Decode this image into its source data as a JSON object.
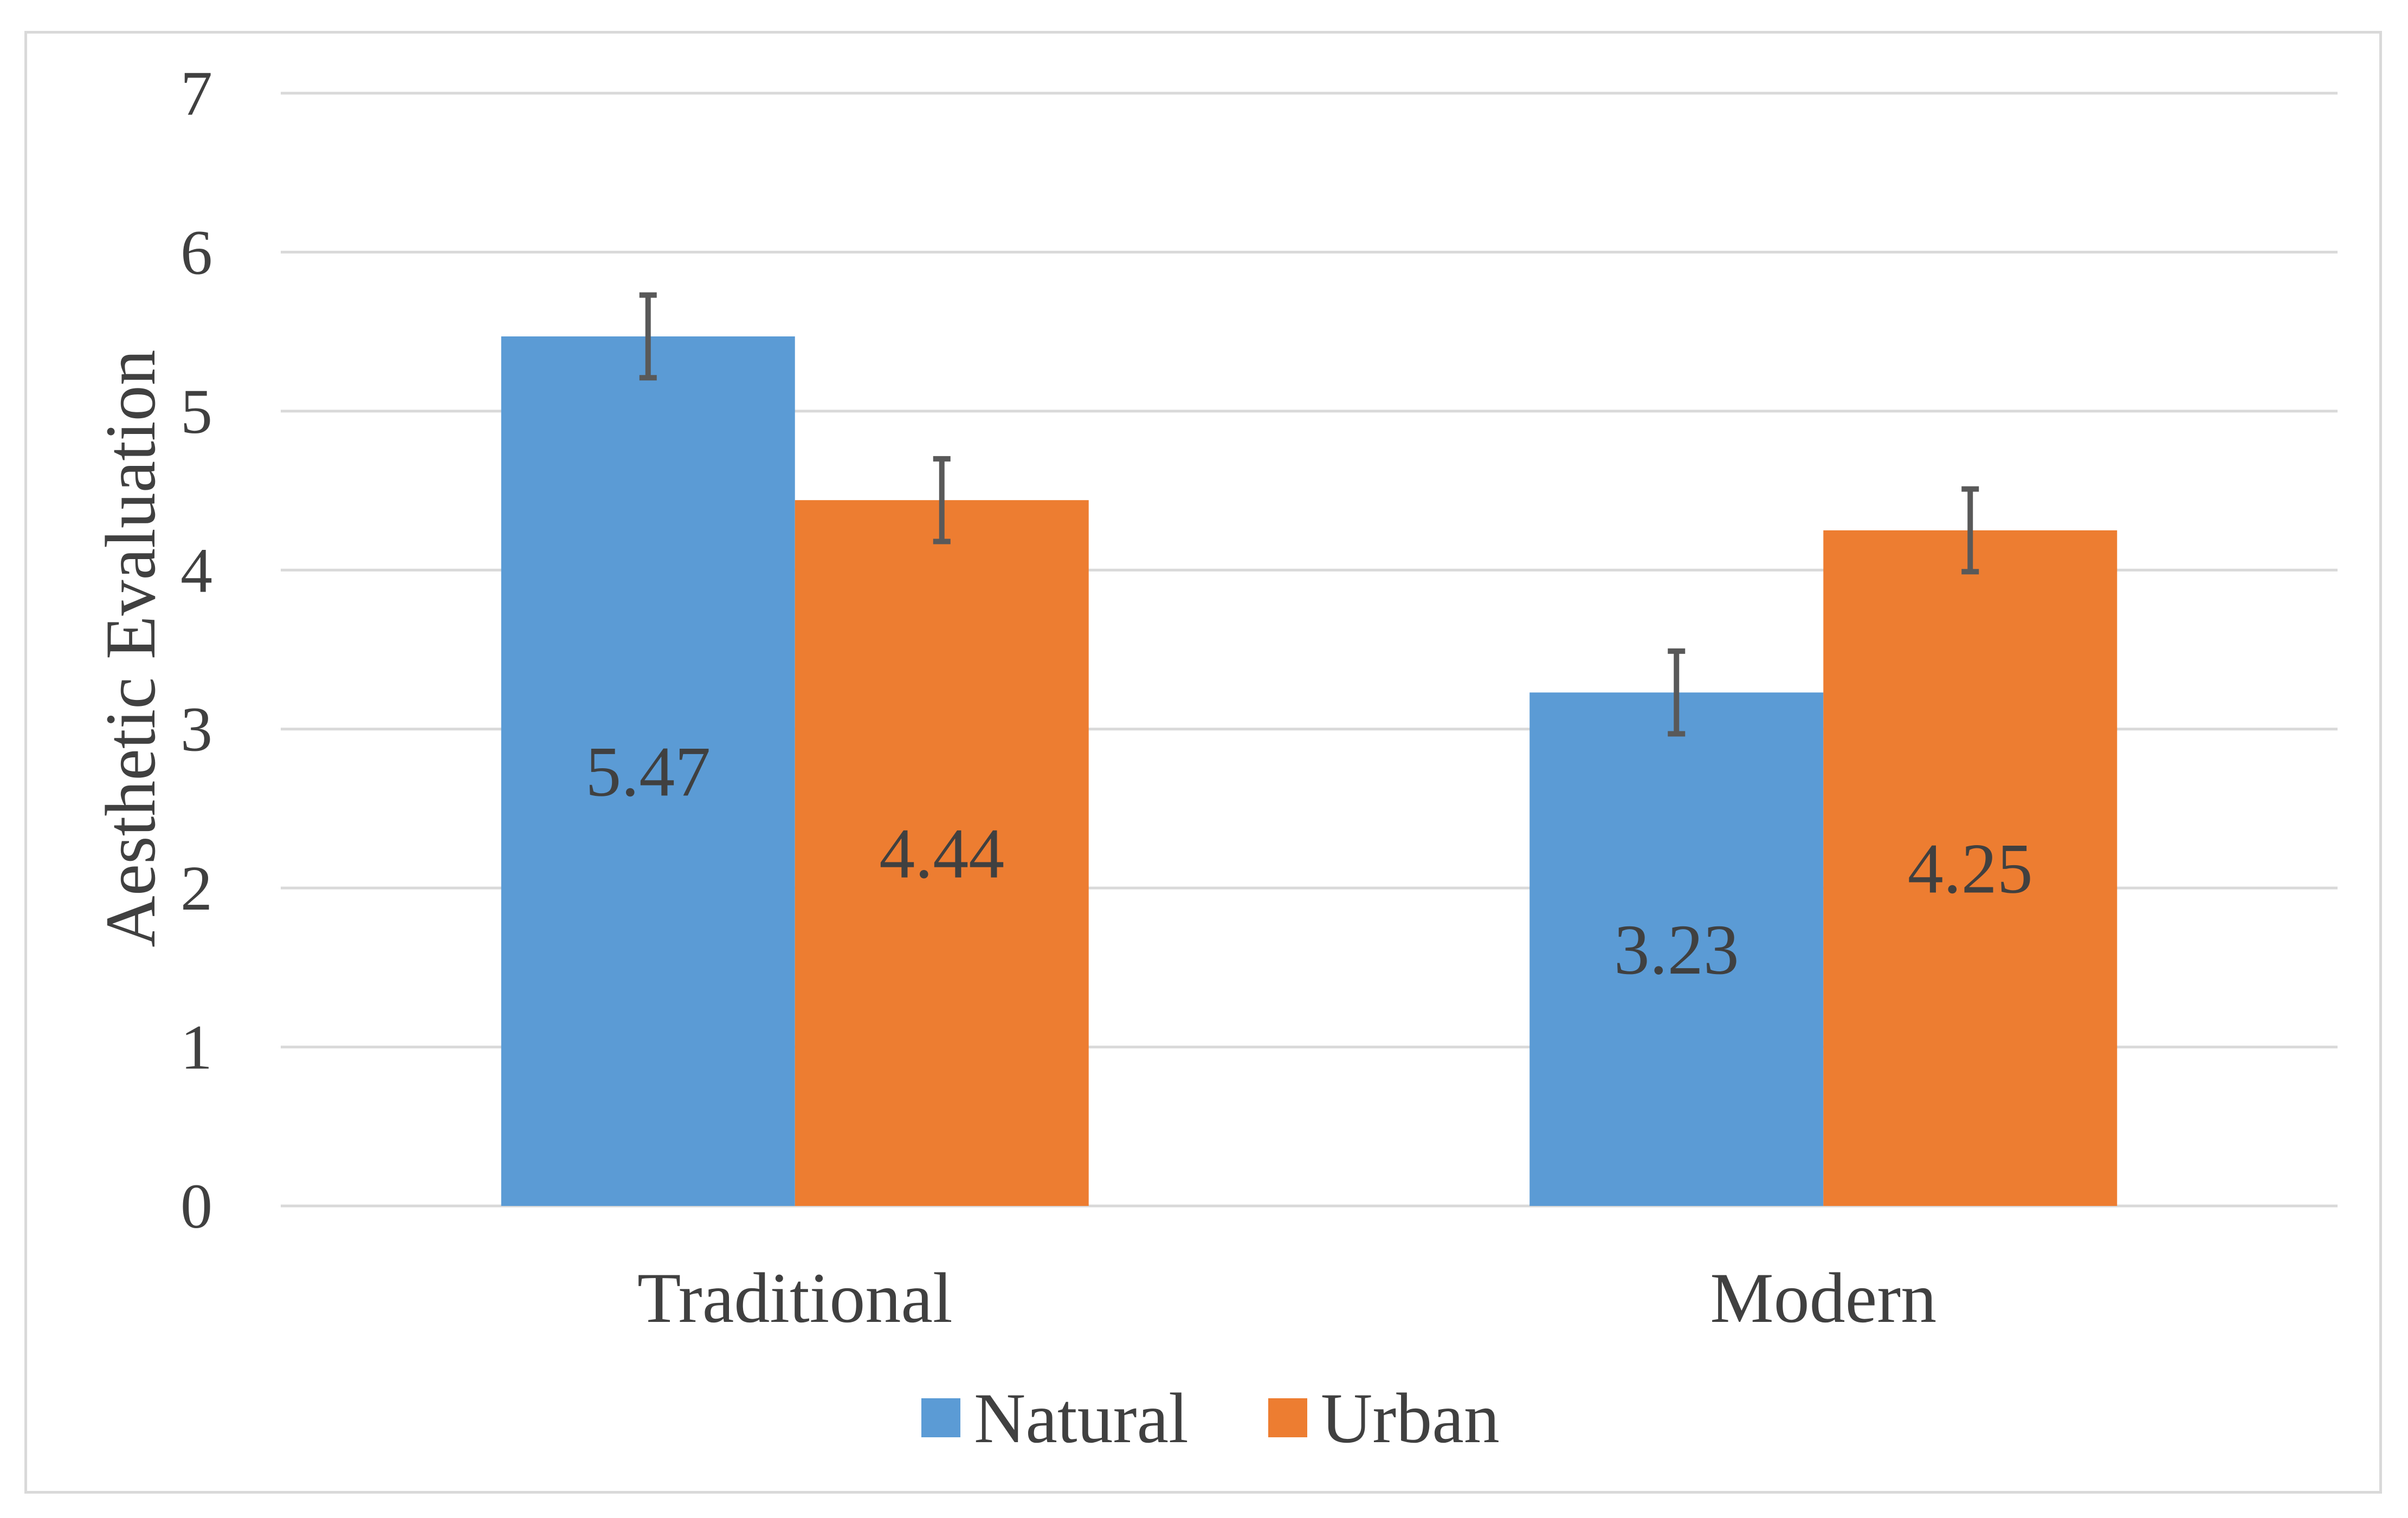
{
  "chart_data": {
    "type": "bar",
    "title": "",
    "xlabel": "",
    "ylabel": "Aesthetic Evaluation",
    "ylim": [
      0,
      7
    ],
    "yticks": [
      0,
      1,
      2,
      3,
      4,
      5,
      6,
      7
    ],
    "grid": true,
    "legend_position": "bottom",
    "categories": [
      "Traditional",
      "Modern"
    ],
    "series": [
      {
        "name": "Natural",
        "color": "#5b9bd5",
        "values": [
          5.47,
          3.23
        ],
        "labels": [
          "5.47",
          "3.23"
        ],
        "error": [
          0.26,
          0.26
        ]
      },
      {
        "name": "Urban",
        "color": "#ed7d31",
        "values": [
          4.44,
          4.25
        ],
        "labels": [
          "4.44",
          "4.25"
        ],
        "error": [
          0.26,
          0.26
        ]
      }
    ]
  }
}
